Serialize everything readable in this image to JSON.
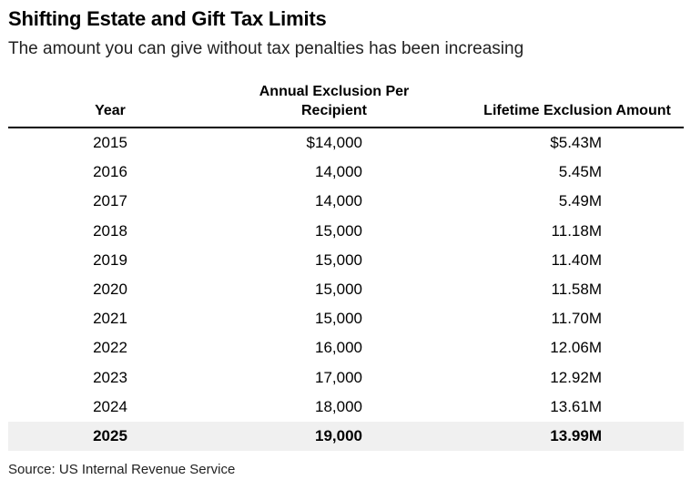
{
  "title": "Shifting Estate and Gift Tax Limits",
  "subtitle": "The amount you can give without tax penalties has been increasing",
  "source": "Source: US Internal Revenue Service",
  "chart_data": {
    "type": "table",
    "columns": [
      "Year",
      "Annual Exclusion Per Recipient",
      "Lifetime Exclusion Amount"
    ],
    "header_lines": {
      "year": [
        "Year"
      ],
      "annual": [
        "Annual Exclusion Per",
        "Recipient"
      ],
      "lifetime": [
        "Lifetime Exclusion Amount"
      ]
    },
    "rows": [
      {
        "year": "2015",
        "annual": "$14,000",
        "lifetime": "$5.43M"
      },
      {
        "year": "2016",
        "annual": "14,000",
        "lifetime": "5.45M"
      },
      {
        "year": "2017",
        "annual": "14,000",
        "lifetime": "5.49M"
      },
      {
        "year": "2018",
        "annual": "15,000",
        "lifetime": "11.18M"
      },
      {
        "year": "2019",
        "annual": "15,000",
        "lifetime": "11.40M"
      },
      {
        "year": "2020",
        "annual": "15,000",
        "lifetime": "11.58M"
      },
      {
        "year": "2021",
        "annual": "15,000",
        "lifetime": "11.70M"
      },
      {
        "year": "2022",
        "annual": "16,000",
        "lifetime": "12.06M"
      },
      {
        "year": "2023",
        "annual": "17,000",
        "lifetime": "12.92M"
      },
      {
        "year": "2024",
        "annual": "18,000",
        "lifetime": "13.61M"
      },
      {
        "year": "2025",
        "annual": "19,000",
        "lifetime": "13.99M",
        "highlight": true
      }
    ],
    "row_highlight_color": "#f0f0f0"
  }
}
